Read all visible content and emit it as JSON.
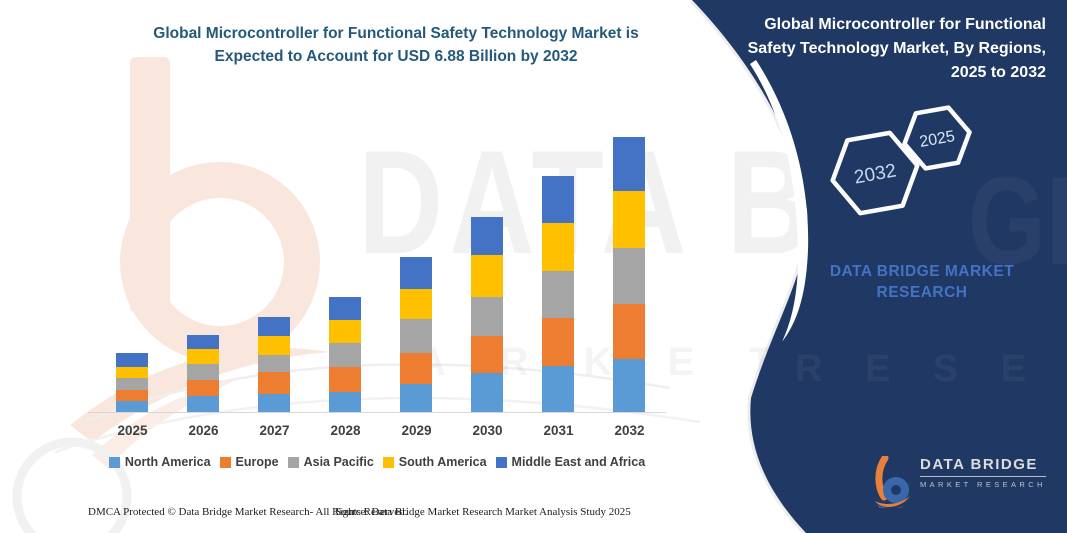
{
  "header": {
    "title_lines": [
      "Global Microcontroller for Functional Safety Technology Market is",
      "Expected to Account for USD 6.88 Billion by 2032"
    ]
  },
  "panel": {
    "title_lines": [
      "Global Microcontroller for Functional",
      "Safety Technology Market, By Regions,",
      "2025 to 2032"
    ],
    "hexagons": [
      {
        "label": "2032"
      },
      {
        "label": "2025"
      }
    ],
    "brand_lines": [
      "DATA BRIDGE MARKET",
      "RESEARCH"
    ],
    "background_color": "#1F3864",
    "brand_text_color": "#4472C4"
  },
  "chart_data": {
    "type": "bar",
    "stacked": true,
    "title": "Global Microcontroller for Functional Safety Technology Market is Expected to Account for USD 6.88 Billion by 2032",
    "unit": "USD Billion",
    "categories": [
      "2025",
      "2026",
      "2027",
      "2028",
      "2029",
      "2030",
      "2031",
      "2032"
    ],
    "series": [
      {
        "name": "North America",
        "color": "#5B9BD5",
        "values": [
          0.3,
          0.43,
          0.47,
          0.52,
          0.72,
          1.0,
          1.17,
          1.35
        ]
      },
      {
        "name": "Europe",
        "color": "#ED7D31",
        "values": [
          0.27,
          0.4,
          0.55,
          0.62,
          0.77,
          0.92,
          1.2,
          1.37
        ]
      },
      {
        "name": "Asia Pacific",
        "color": "#A5A5A5",
        "values": [
          0.3,
          0.4,
          0.42,
          0.6,
          0.85,
          0.97,
          1.17,
          1.4
        ]
      },
      {
        "name": "South America",
        "color": "#FFC000",
        "values": [
          0.27,
          0.37,
          0.47,
          0.57,
          0.75,
          1.05,
          1.2,
          1.4
        ]
      },
      {
        "name": "Middle East and Africa",
        "color": "#4472C4",
        "values": [
          0.35,
          0.36,
          0.47,
          0.57,
          0.8,
          0.95,
          1.17,
          1.36
        ]
      }
    ],
    "totals_estimated": [
      1.49,
      1.96,
      2.38,
      2.88,
      3.89,
      4.89,
      5.91,
      6.88
    ],
    "value_2032_label": "USD 6.88 Billion",
    "xlabel": "",
    "ylabel": "",
    "y_axis_shown": false,
    "gridlines": false,
    "legend_position": "bottom"
  },
  "footer": {
    "dmca": "DMCA Protected © Data Bridge Market Research-  All Rights Reserved.",
    "source": "Source: Data Bridge Market Research  Market Analysis Study 2025"
  },
  "logo": {
    "name": "DATA BRIDGE",
    "subtitle": "MARKET RESEARCH"
  },
  "watermarks": {
    "big_text": "DATA BRI",
    "spaced_text": "M A R K E T",
    "panel_ghost_1": "GE",
    "panel_ghost_2": "R E S E A R C H"
  }
}
